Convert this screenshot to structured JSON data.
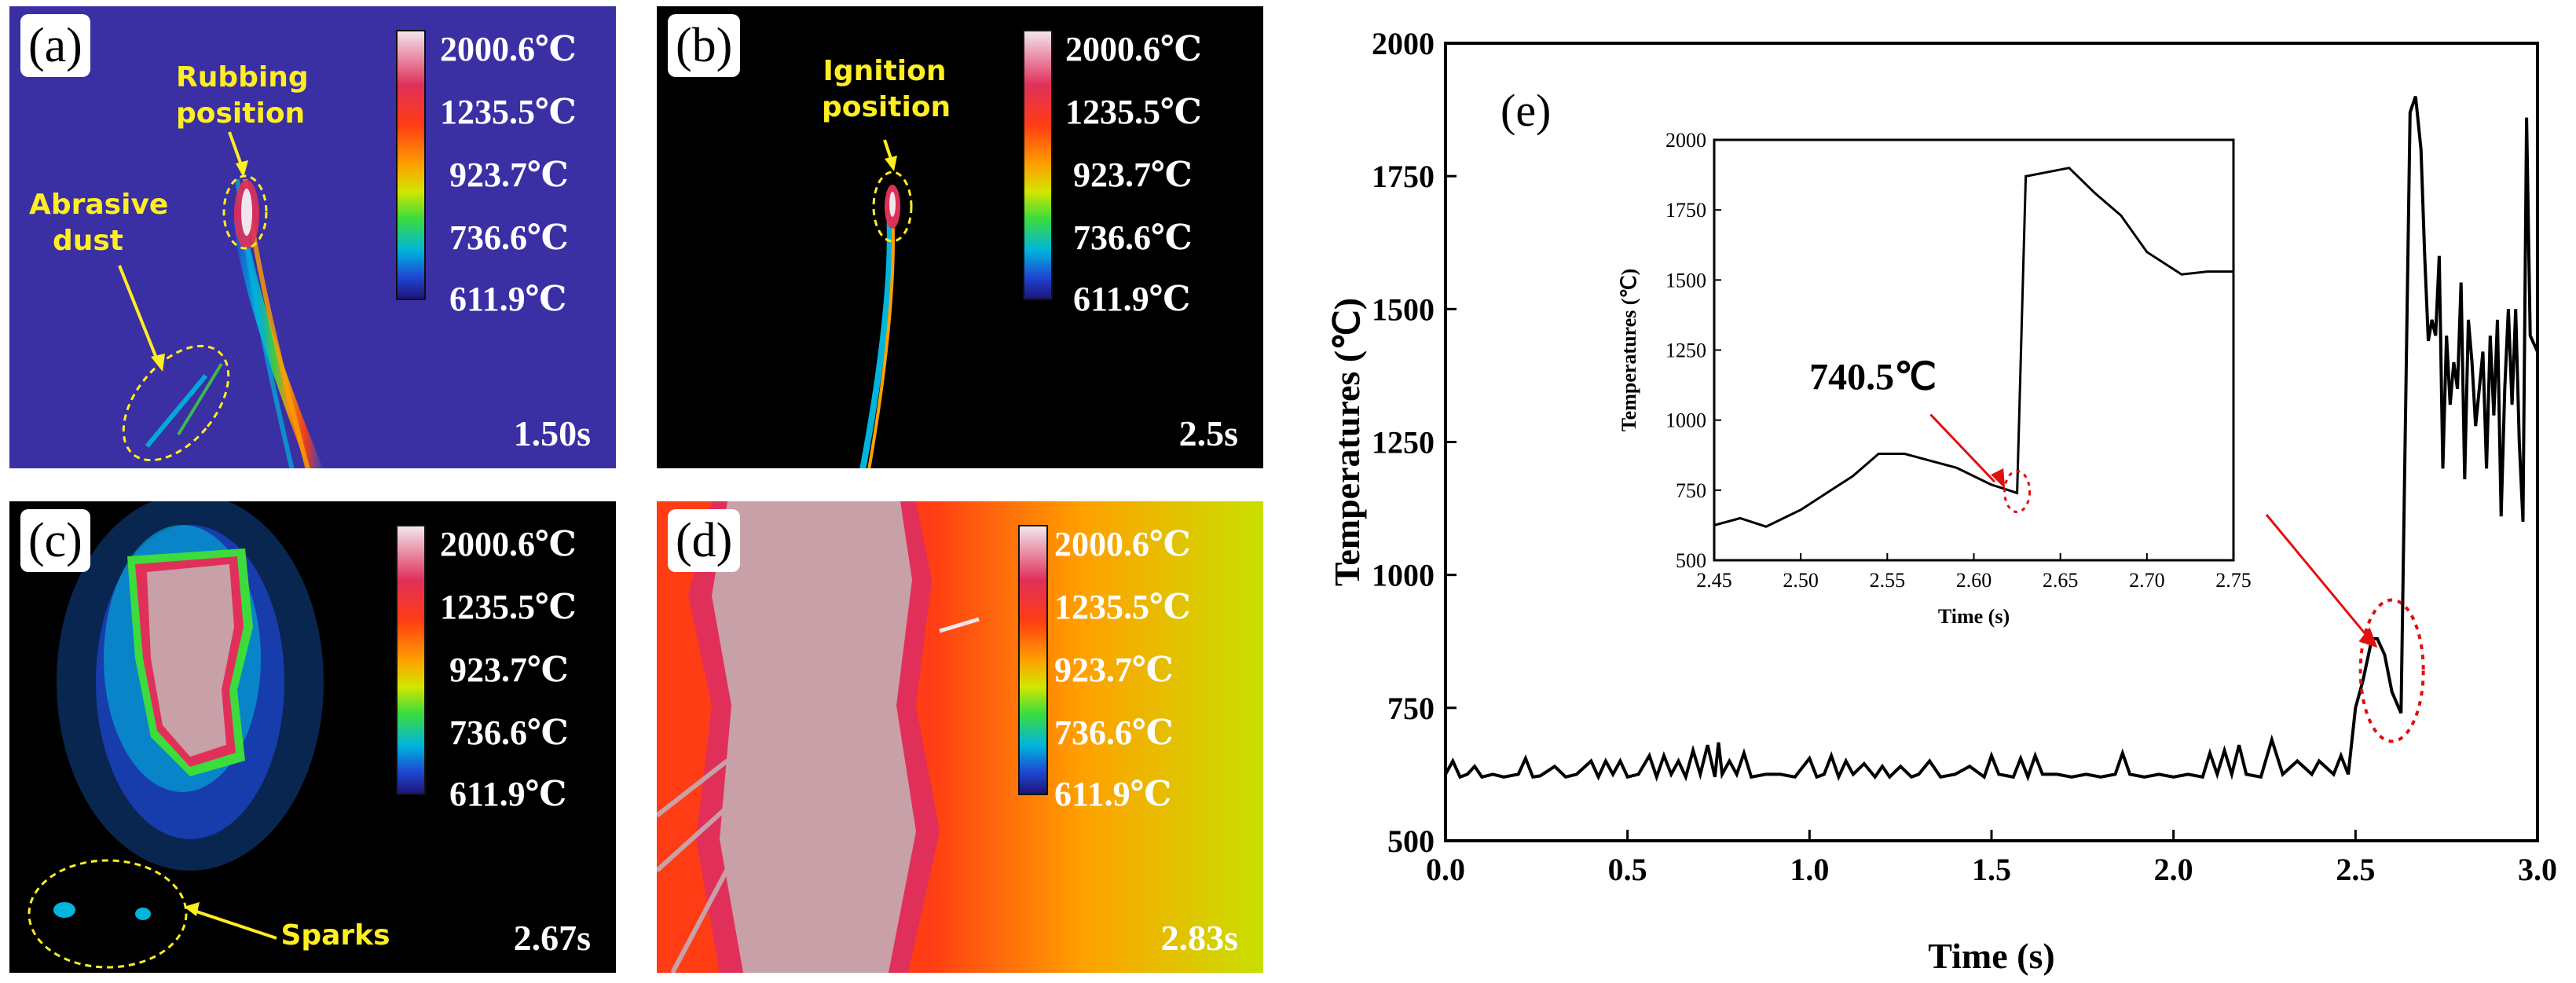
{
  "panels": [
    {
      "label": "(a)",
      "time": "1.50s",
      "annotations": [
        "Rubbing position",
        "Abrasive dust"
      ]
    },
    {
      "label": "(b)",
      "time": "2.5s",
      "annotations": [
        "Ignition position"
      ]
    },
    {
      "label": "(c)",
      "time": "2.67s",
      "annotations": [
        "Sparks"
      ]
    },
    {
      "label": "(d)",
      "time": "2.83s",
      "annotations": []
    }
  ],
  "colorbar": {
    "labels": [
      "2000.6℃",
      "1235.5℃",
      "923.7℃",
      "736.6℃",
      "611.9℃"
    ],
    "colors": [
      "#f2e6ee",
      "#e0305a",
      "#ff3c14",
      "#ffa000",
      "#d2e600",
      "#3cdc3c",
      "#00b4dc",
      "#1e46d2",
      "#1e1478"
    ]
  },
  "colors": {
    "annotation": "#ffee22",
    "marker": "#e01010",
    "line": "#000000"
  },
  "chart_data": [
    {
      "type": "line",
      "panel_label": "(e)",
      "xlabel": "Time (s)",
      "ylabel": "Temperatures (℃)",
      "xlim": [
        0.0,
        3.0
      ],
      "ylim": [
        500,
        2000
      ],
      "xticks": [
        "0.0",
        "0.5",
        "1.0",
        "1.5",
        "2.0",
        "2.5",
        "3.0"
      ],
      "yticks": [
        "500",
        "750",
        "1000",
        "1250",
        "1500",
        "1750",
        "2000"
      ],
      "series": [
        {
          "name": "temperature",
          "x": [
            0.0,
            0.02,
            0.04,
            0.06,
            0.08,
            0.1,
            0.13,
            0.16,
            0.2,
            0.22,
            0.24,
            0.26,
            0.3,
            0.33,
            0.36,
            0.4,
            0.42,
            0.44,
            0.46,
            0.48,
            0.5,
            0.53,
            0.56,
            0.58,
            0.6,
            0.62,
            0.64,
            0.66,
            0.68,
            0.7,
            0.72,
            0.74,
            0.75,
            0.76,
            0.78,
            0.8,
            0.82,
            0.84,
            0.88,
            0.92,
            0.96,
            1.0,
            1.02,
            1.04,
            1.06,
            1.08,
            1.1,
            1.12,
            1.15,
            1.18,
            1.2,
            1.22,
            1.25,
            1.28,
            1.3,
            1.33,
            1.36,
            1.4,
            1.44,
            1.48,
            1.5,
            1.52,
            1.56,
            1.58,
            1.6,
            1.62,
            1.64,
            1.68,
            1.72,
            1.76,
            1.8,
            1.84,
            1.86,
            1.88,
            1.92,
            1.96,
            2.0,
            2.04,
            2.08,
            2.1,
            2.12,
            2.14,
            2.16,
            2.18,
            2.2,
            2.24,
            2.27,
            2.3,
            2.34,
            2.38,
            2.4,
            2.44,
            2.46,
            2.48,
            2.5,
            2.52,
            2.545,
            2.56,
            2.58,
            2.6,
            2.625,
            2.65,
            2.665,
            2.68,
            2.69,
            2.7,
            2.71,
            2.72,
            2.73,
            2.74,
            2.75,
            2.76,
            2.77,
            2.78,
            2.79,
            2.8,
            2.81,
            2.82,
            2.83,
            2.84,
            2.85,
            2.86,
            2.87,
            2.88,
            2.89,
            2.9,
            2.91,
            2.92,
            2.93,
            2.94,
            2.95,
            2.96,
            2.97,
            2.98,
            3.0
          ],
          "y": [
            625,
            650,
            620,
            625,
            640,
            620,
            625,
            620,
            625,
            655,
            620,
            622,
            640,
            620,
            625,
            650,
            620,
            650,
            625,
            650,
            620,
            625,
            660,
            620,
            660,
            625,
            650,
            620,
            670,
            625,
            680,
            620,
            685,
            625,
            650,
            625,
            665,
            620,
            625,
            625,
            620,
            655,
            620,
            625,
            660,
            620,
            650,
            625,
            645,
            620,
            640,
            620,
            640,
            620,
            625,
            650,
            620,
            625,
            640,
            620,
            660,
            625,
            620,
            655,
            620,
            660,
            625,
            625,
            620,
            625,
            620,
            625,
            665,
            625,
            620,
            625,
            620,
            625,
            620,
            665,
            625,
            670,
            625,
            680,
            625,
            620,
            690,
            625,
            650,
            625,
            650,
            625,
            660,
            625,
            750,
            800,
            880,
            880,
            850,
            780,
            740,
            1870,
            1900,
            1800,
            1600,
            1440,
            1480,
            1450,
            1600,
            1200,
            1450,
            1320,
            1400,
            1350,
            1550,
            1180,
            1480,
            1400,
            1280,
            1350,
            1420,
            1200,
            1450,
            1300,
            1480,
            1110,
            1350,
            1500,
            1320,
            1500,
            1250,
            1100,
            1860,
            1450,
            1420
          ]
        }
      ],
      "annotation_marker": "dotted ellipse around peak near 2.55-2.65 s",
      "inset": {
        "type": "line",
        "xlabel": "Time (s)",
        "ylabel": "Temperatures (℃)",
        "xlim": [
          2.45,
          2.75
        ],
        "ylim": [
          500,
          2000
        ],
        "xticks": [
          "2.45",
          "2.50",
          "2.55",
          "2.60",
          "2.65",
          "2.70",
          "2.75"
        ],
        "yticks": [
          "500",
          "750",
          "1000",
          "1250",
          "1500",
          "1750",
          "2000"
        ],
        "annotation": "740.5℃",
        "series": [
          {
            "name": "temperature",
            "x": [
              2.45,
              2.465,
              2.48,
              2.5,
              2.52,
              2.53,
              2.545,
              2.56,
              2.575,
              2.59,
              2.6,
              2.61,
              2.62,
              2.625,
              2.63,
              2.655,
              2.67,
              2.685,
              2.7,
              2.72,
              2.735,
              2.75
            ],
            "y": [
              625,
              650,
              620,
              680,
              760,
              800,
              880,
              880,
              855,
              830,
              800,
              770,
              750,
              740,
              1870,
              1900,
              1810,
              1730,
              1600,
              1520,
              1530,
              1530
            ]
          }
        ]
      }
    }
  ]
}
